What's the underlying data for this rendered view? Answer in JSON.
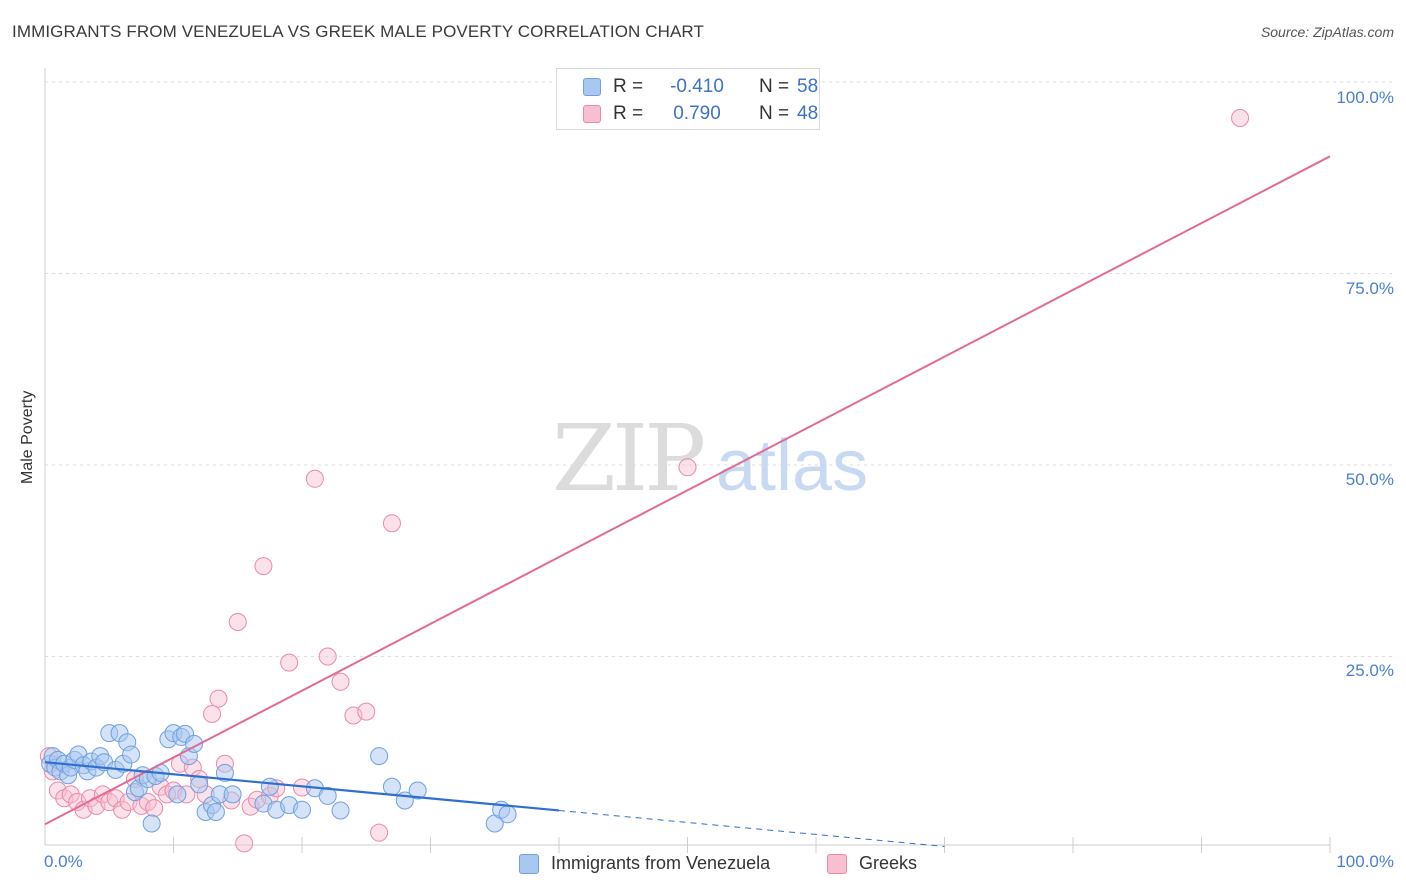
{
  "header": {
    "title": "IMMIGRANTS FROM VENEZUELA VS GREEK MALE POVERTY CORRELATION CHART",
    "source": "Source: ZipAtlas.com"
  },
  "watermark": {
    "zip": "ZIP",
    "atlas": "atlas"
  },
  "legend": {
    "rows": [
      {
        "r_label": "R =",
        "r_value": "-0.410",
        "n_label": "N =",
        "n_value": "58",
        "color": "#a9c8f0",
        "border": "#6fa0e0"
      },
      {
        "r_label": "R =",
        "r_value": "0.790",
        "n_label": "N =",
        "n_value": "48",
        "color": "#f7bfd0",
        "border": "#ea8aa8"
      }
    ]
  },
  "bottom_legend": {
    "items": [
      {
        "label": "Immigrants from Venezuela",
        "color": "#a9c8f0",
        "border": "#6fa0e0"
      },
      {
        "label": "Greeks",
        "color": "#f7bfd0",
        "border": "#ea8aa8"
      }
    ]
  },
  "chart_data": {
    "type": "scatter",
    "title": "IMMIGRANTS FROM VENEZUELA VS GREEK MALE POVERTY CORRELATION CHART",
    "xlabel": "",
    "ylabel": "Male Poverty",
    "xlim": [
      0,
      100
    ],
    "ylim": [
      0,
      100
    ],
    "x_tick_labels": [
      "0.0%",
      "100.0%"
    ],
    "y_ticks": [
      25,
      50,
      75,
      100
    ],
    "y_tick_labels": [
      "25.0%",
      "50.0%",
      "75.0%",
      "100.0%"
    ],
    "grid": true,
    "colors": {
      "venezuela": "#6fa0e0",
      "greeks": "#ea8aa8",
      "trend_blue": "#2f6fd0",
      "trend_pink": "#e26b95",
      "tick_text": "#4a7fcf"
    },
    "series": [
      {
        "name": "Immigrants from Venezuela",
        "trend": {
          "x0": 0,
          "y0": 11.2,
          "x1": 40,
          "y1": 4.9,
          "dashed_to_x": 70,
          "dashed_to_y": 0.2
        },
        "points": [
          [
            0.4,
            11.0
          ],
          [
            0.6,
            12.0
          ],
          [
            0.8,
            10.5
          ],
          [
            1.0,
            11.5
          ],
          [
            1.2,
            10.0
          ],
          [
            1.5,
            11.0
          ],
          [
            1.8,
            9.5
          ],
          [
            2.0,
            10.5
          ],
          [
            2.3,
            11.5
          ],
          [
            2.6,
            12.2
          ],
          [
            3.0,
            10.8
          ],
          [
            3.3,
            10.0
          ],
          [
            3.6,
            11.3
          ],
          [
            4.0,
            10.5
          ],
          [
            4.3,
            12.0
          ],
          [
            4.6,
            11.2
          ],
          [
            5.0,
            15.0
          ],
          [
            5.5,
            10.2
          ],
          [
            5.8,
            15.0
          ],
          [
            6.1,
            11.0
          ],
          [
            6.4,
            13.8
          ],
          [
            6.7,
            12.2
          ],
          [
            7.0,
            7.3
          ],
          [
            7.3,
            7.8
          ],
          [
            7.6,
            9.5
          ],
          [
            8.0,
            9.0
          ],
          [
            8.3,
            3.2
          ],
          [
            8.6,
            9.4
          ],
          [
            9.0,
            9.8
          ],
          [
            9.6,
            14.2
          ],
          [
            10.0,
            15.0
          ],
          [
            10.3,
            7.0
          ],
          [
            10.6,
            14.5
          ],
          [
            10.9,
            14.9
          ],
          [
            11.2,
            12.0
          ],
          [
            11.6,
            13.6
          ],
          [
            12.0,
            8.3
          ],
          [
            12.5,
            4.7
          ],
          [
            13.0,
            5.6
          ],
          [
            13.3,
            4.7
          ],
          [
            13.6,
            7.0
          ],
          [
            14.0,
            9.8
          ],
          [
            14.6,
            7.0
          ],
          [
            17.0,
            5.8
          ],
          [
            17.5,
            8.0
          ],
          [
            18.0,
            5.0
          ],
          [
            19.0,
            5.6
          ],
          [
            20.0,
            5.0
          ],
          [
            21.0,
            7.8
          ],
          [
            22.0,
            6.8
          ],
          [
            23.0,
            4.9
          ],
          [
            26.0,
            12.0
          ],
          [
            27.0,
            8.0
          ],
          [
            28.0,
            6.2
          ],
          [
            29.0,
            7.5
          ],
          [
            35.0,
            3.2
          ],
          [
            35.5,
            5.0
          ],
          [
            36.0,
            4.4
          ]
        ]
      },
      {
        "name": "Greeks",
        "trend": {
          "x0": 0,
          "y0": 3.1,
          "x1": 100,
          "y1": 90.3
        },
        "points": [
          [
            0.3,
            12.0
          ],
          [
            0.6,
            10.0
          ],
          [
            1.0,
            7.5
          ],
          [
            1.5,
            6.5
          ],
          [
            2.0,
            7.0
          ],
          [
            2.5,
            6.0
          ],
          [
            3.0,
            5.0
          ],
          [
            3.5,
            6.5
          ],
          [
            4.0,
            5.5
          ],
          [
            4.5,
            7.0
          ],
          [
            5.0,
            6.0
          ],
          [
            5.5,
            6.5
          ],
          [
            6.0,
            5.0
          ],
          [
            6.5,
            6.0
          ],
          [
            7.0,
            9.0
          ],
          [
            7.5,
            5.5
          ],
          [
            8.0,
            6.0
          ],
          [
            8.5,
            5.2
          ],
          [
            9.0,
            8.0
          ],
          [
            9.5,
            7.0
          ],
          [
            10.0,
            7.5
          ],
          [
            10.5,
            11.0
          ],
          [
            11.0,
            7.0
          ],
          [
            11.5,
            10.5
          ],
          [
            12.0,
            9.0
          ],
          [
            12.5,
            7.0
          ],
          [
            13.0,
            17.5
          ],
          [
            13.5,
            19.5
          ],
          [
            14.0,
            11.0
          ],
          [
            14.5,
            6.2
          ],
          [
            15.0,
            29.5
          ],
          [
            15.5,
            0.6
          ],
          [
            16.0,
            5.4
          ],
          [
            16.5,
            6.3
          ],
          [
            17.0,
            36.8
          ],
          [
            17.5,
            6.8
          ],
          [
            18.0,
            7.8
          ],
          [
            19.0,
            24.2
          ],
          [
            20.0,
            7.9
          ],
          [
            21.0,
            48.2
          ],
          [
            22.0,
            25.0
          ],
          [
            23.0,
            21.7
          ],
          [
            24.0,
            17.3
          ],
          [
            25.0,
            17.8
          ],
          [
            26.0,
            2.0
          ],
          [
            27.0,
            42.4
          ],
          [
            50.0,
            49.7
          ],
          [
            93.0,
            95.3
          ]
        ]
      }
    ]
  }
}
